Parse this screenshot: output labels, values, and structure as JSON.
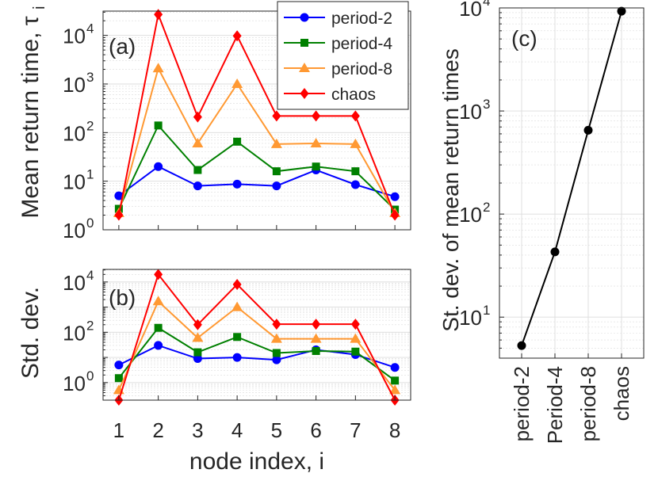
{
  "colors": {
    "period2": "#0000FF",
    "period4": "#008000",
    "period8": "#FF9933",
    "chaos": "#FF0000",
    "axis": "#262626",
    "grid": "#dcdcdc"
  },
  "chart_data": [
    {
      "id": "a",
      "type": "line",
      "panel_label": "(a)",
      "ylabel": "Mean return time, τ",
      "ylabel_sub": "i",
      "xlabel": "",
      "yscale": "log",
      "ylim": [
        1,
        31622
      ],
      "xlim": [
        0.6,
        8.4
      ],
      "x": [
        1,
        2,
        3,
        4,
        5,
        6,
        7,
        8
      ],
      "ytick_values": [
        1,
        10,
        100,
        1000,
        10000
      ],
      "ytick_exponents": [
        "0",
        "1",
        "2",
        "3",
        "4"
      ],
      "ytick_base": "10",
      "grid": true,
      "series": [
        {
          "name": "period-2",
          "marker": "circle",
          "values": [
            5,
            20,
            8,
            8.7,
            8,
            17,
            8.5,
            4.8
          ]
        },
        {
          "name": "period-4",
          "marker": "square",
          "values": [
            2.7,
            140,
            17,
            65,
            16,
            20,
            16,
            2.6
          ]
        },
        {
          "name": "period-8",
          "marker": "triangle",
          "values": [
            2.2,
            2100,
            60,
            1000,
            58,
            60,
            58,
            2.2
          ]
        },
        {
          "name": "chaos",
          "marker": "diamond",
          "values": [
            2,
            27000,
            210,
            9800,
            220,
            220,
            220,
            2
          ]
        }
      ],
      "legend": {
        "placement": "top-right",
        "entries": [
          "period-2",
          "period-4",
          "period-8",
          "chaos"
        ]
      }
    },
    {
      "id": "b",
      "type": "line",
      "panel_label": "(b)",
      "ylabel": "Std. dev.",
      "xlabel": "node index, i",
      "yscale": "log",
      "ylim": [
        0.2,
        31622
      ],
      "xlim": [
        0.6,
        8.4
      ],
      "x": [
        1,
        2,
        3,
        4,
        5,
        6,
        7,
        8
      ],
      "xtick_labels": [
        "1",
        "2",
        "3",
        "4",
        "5",
        "6",
        "7",
        "8"
      ],
      "ytick_values": [
        1,
        100,
        10000
      ],
      "ytick_exponents": [
        "0",
        "2",
        "4"
      ],
      "ytick_base": "10",
      "grid": true,
      "series": [
        {
          "name": "period-2",
          "marker": "circle",
          "values": [
            5,
            30,
            9,
            10,
            8,
            20,
            13,
            4
          ]
        },
        {
          "name": "period-4",
          "marker": "square",
          "values": [
            1.5,
            150,
            16,
            65,
            15,
            18,
            17,
            1.2
          ]
        },
        {
          "name": "period-8",
          "marker": "triangle",
          "values": [
            0.5,
            1700,
            60,
            1000,
            55,
            55,
            55,
            0.5
          ]
        },
        {
          "name": "chaos",
          "marker": "diamond",
          "values": [
            0.2,
            20000,
            200,
            8000,
            210,
            210,
            210,
            0.2
          ]
        }
      ]
    },
    {
      "id": "c",
      "type": "line",
      "panel_label": "(c)",
      "ylabel": "St. dev. of mean return times",
      "xlabel": "",
      "yscale": "log",
      "ylim": [
        4,
        10000
      ],
      "categories": [
        "period-2",
        "Period-4",
        "period-8",
        "chaos"
      ],
      "values": [
        5.3,
        43,
        650,
        9300
      ],
      "ytick_values": [
        10,
        100,
        1000,
        10000
      ],
      "ytick_exponents": [
        "1",
        "2",
        "3",
        "4"
      ],
      "ytick_base": "10",
      "grid": true
    }
  ]
}
